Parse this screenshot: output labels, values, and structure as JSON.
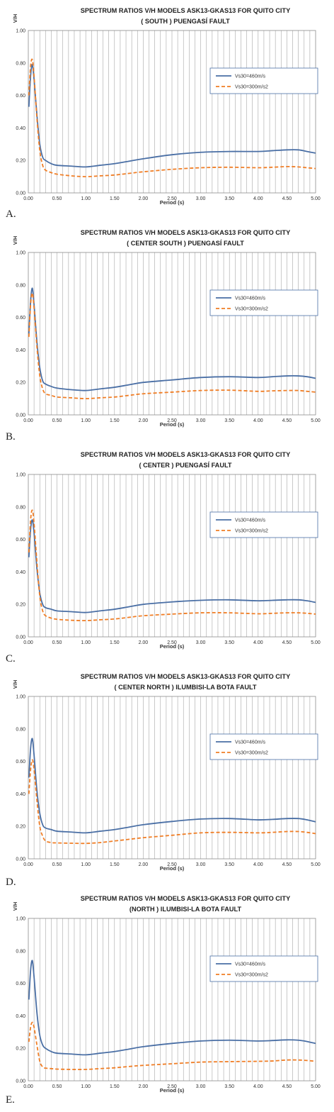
{
  "colors": {
    "series1": "#4A6FA5",
    "series2": "#F07E26",
    "grid": "#A6A6A6",
    "text": "#333333",
    "title": "#1F1F1F"
  },
  "chart_data": [
    {
      "type": "line",
      "panel_label": "A.",
      "title": "SPECTRUM  RATIOS V/H MODELS ASK13-GKAS13 FOR QUITO CITY",
      "subtitle": "( SOUTH ) PUENGASÍ FAULT",
      "xlabel": "Period (s)",
      "ylabel": "V/H",
      "xlim": [
        0,
        5
      ],
      "ylim": [
        0,
        1
      ],
      "x_ticks": [
        "0.00",
        "0.50",
        "1.00",
        "1.50",
        "2.00",
        "2.50",
        "3.00",
        "3.50",
        "4.00",
        "4.50",
        "5.00"
      ],
      "y_ticks": [
        "0.00",
        "0.20",
        "0.40",
        "0.60",
        "0.80",
        "1.00"
      ],
      "grid": "vertical",
      "legend": "right",
      "series": [
        {
          "name": "Vs30=460m/s",
          "style": "solid",
          "x": [
            0.01,
            0.04,
            0.07,
            0.1,
            0.15,
            0.2,
            0.25,
            0.3,
            0.4,
            0.5,
            0.75,
            1.0,
            1.25,
            1.5,
            1.75,
            2.0,
            2.5,
            3.0,
            3.5,
            4.0,
            4.25,
            4.5,
            4.7,
            4.85,
            5.0
          ],
          "y": [
            0.53,
            0.72,
            0.79,
            0.7,
            0.48,
            0.3,
            0.22,
            0.2,
            0.18,
            0.17,
            0.165,
            0.16,
            0.17,
            0.18,
            0.195,
            0.21,
            0.235,
            0.25,
            0.255,
            0.255,
            0.26,
            0.265,
            0.265,
            0.255,
            0.245
          ]
        },
        {
          "name": "Vs30=300m/s2",
          "style": "dashed",
          "x": [
            0.01,
            0.04,
            0.07,
            0.1,
            0.15,
            0.2,
            0.25,
            0.3,
            0.4,
            0.5,
            0.75,
            1.0,
            1.25,
            1.5,
            1.75,
            2.0,
            2.5,
            3.0,
            3.5,
            4.0,
            4.25,
            4.5,
            4.7,
            4.85,
            5.0
          ],
          "y": [
            0.6,
            0.78,
            0.82,
            0.72,
            0.46,
            0.26,
            0.17,
            0.14,
            0.125,
            0.115,
            0.105,
            0.1,
            0.105,
            0.11,
            0.12,
            0.13,
            0.145,
            0.155,
            0.158,
            0.155,
            0.158,
            0.162,
            0.16,
            0.155,
            0.15
          ]
        }
      ]
    },
    {
      "type": "line",
      "panel_label": "B.",
      "title": "SPECTRUM  RATIOS V/H MODELS ASK13-GKAS13 FOR QUITO CITY",
      "subtitle": "( CENTER SOUTH  ) PUENGASÍ FAULT",
      "xlabel": "Period (s)",
      "ylabel": "V/H",
      "xlim": [
        0,
        5
      ],
      "ylim": [
        0,
        1
      ],
      "x_ticks": [
        "0.00",
        "0.50",
        "1.00",
        "1.50",
        "2.00",
        "2.50",
        "3.00",
        "3.50",
        "4.00",
        "4.50",
        "5.00"
      ],
      "y_ticks": [
        "0.00",
        "0.20",
        "0.40",
        "0.60",
        "0.80",
        "1.00"
      ],
      "grid": "vertical",
      "legend": "right",
      "series": [
        {
          "name": "Vs30=460m/s",
          "style": "solid",
          "x": [
            0.01,
            0.04,
            0.07,
            0.1,
            0.15,
            0.2,
            0.25,
            0.3,
            0.4,
            0.5,
            0.75,
            1.0,
            1.25,
            1.5,
            1.75,
            2.0,
            2.5,
            3.0,
            3.5,
            4.0,
            4.25,
            4.5,
            4.7,
            4.85,
            5.0
          ],
          "y": [
            0.5,
            0.7,
            0.78,
            0.68,
            0.45,
            0.29,
            0.21,
            0.19,
            0.175,
            0.165,
            0.155,
            0.15,
            0.16,
            0.17,
            0.185,
            0.2,
            0.215,
            0.23,
            0.235,
            0.23,
            0.235,
            0.24,
            0.24,
            0.235,
            0.225
          ]
        },
        {
          "name": "Vs30=300m/s2",
          "style": "dashed",
          "x": [
            0.01,
            0.04,
            0.07,
            0.1,
            0.15,
            0.2,
            0.25,
            0.3,
            0.4,
            0.5,
            0.75,
            1.0,
            1.25,
            1.5,
            1.75,
            2.0,
            2.5,
            3.0,
            3.5,
            4.0,
            4.25,
            4.5,
            4.7,
            4.85,
            5.0
          ],
          "y": [
            0.48,
            0.68,
            0.75,
            0.66,
            0.42,
            0.24,
            0.16,
            0.13,
            0.12,
            0.11,
            0.105,
            0.1,
            0.105,
            0.11,
            0.12,
            0.13,
            0.14,
            0.15,
            0.152,
            0.145,
            0.148,
            0.15,
            0.15,
            0.145,
            0.14
          ]
        }
      ]
    },
    {
      "type": "line",
      "panel_label": "C.",
      "title": "SPECTRUM  RATIOS V/H MODELS ASK13-GKAS13 FOR QUITO CITY",
      "subtitle": "( CENTER ) PUENGASÍ FAULT",
      "xlabel": "Period (s)",
      "ylabel": "",
      "xlim": [
        0,
        5
      ],
      "ylim": [
        0,
        1
      ],
      "x_ticks": [
        "0.00",
        "0.50",
        "1.00",
        "1.50",
        "2.00",
        "2.50",
        "3.00",
        "3.50",
        "4.00",
        "4.50",
        "5.00"
      ],
      "y_ticks": [
        "0.00",
        "0.20",
        "0.40",
        "0.60",
        "0.80",
        "1.00"
      ],
      "grid": "vertical",
      "legend": "right",
      "series": [
        {
          "name": "Vs30=460m/s",
          "style": "solid",
          "x": [
            0.01,
            0.04,
            0.07,
            0.1,
            0.15,
            0.2,
            0.25,
            0.3,
            0.4,
            0.5,
            0.75,
            1.0,
            1.25,
            1.5,
            1.75,
            2.0,
            2.5,
            3.0,
            3.5,
            4.0,
            4.25,
            4.5,
            4.7,
            4.85,
            5.0
          ],
          "y": [
            0.49,
            0.66,
            0.72,
            0.64,
            0.42,
            0.27,
            0.2,
            0.18,
            0.17,
            0.16,
            0.155,
            0.15,
            0.16,
            0.17,
            0.185,
            0.2,
            0.215,
            0.225,
            0.228,
            0.222,
            0.225,
            0.228,
            0.228,
            0.222,
            0.212
          ]
        },
        {
          "name": "Vs30=300m/s2",
          "style": "dashed",
          "x": [
            0.01,
            0.04,
            0.07,
            0.1,
            0.15,
            0.2,
            0.25,
            0.3,
            0.4,
            0.5,
            0.75,
            1.0,
            1.25,
            1.5,
            1.75,
            2.0,
            2.5,
            3.0,
            3.5,
            4.0,
            4.25,
            4.5,
            4.7,
            4.85,
            5.0
          ],
          "y": [
            0.52,
            0.72,
            0.78,
            0.7,
            0.46,
            0.25,
            0.16,
            0.13,
            0.115,
            0.108,
            0.102,
            0.1,
            0.105,
            0.11,
            0.12,
            0.13,
            0.14,
            0.148,
            0.148,
            0.142,
            0.145,
            0.148,
            0.148,
            0.145,
            0.14
          ]
        }
      ]
    },
    {
      "type": "line",
      "panel_label": "D.",
      "title": "SPECTRUM  RATIOS V/H MODELS ASK13-GKAS13 FOR QUITO CITY",
      "subtitle": "( CENTER NORTH ) ILUMBISI-LA BOTA FAULT",
      "xlabel": "Period (s)",
      "ylabel": "V/H",
      "xlim": [
        0,
        5
      ],
      "ylim": [
        0,
        1
      ],
      "x_ticks": [
        "0.00",
        "0.50",
        "1.00",
        "1.50",
        "2.00",
        "2.50",
        "3.00",
        "3.50",
        "4.00",
        "4.50",
        "5.00"
      ],
      "y_ticks": [
        "0.00",
        "0.20",
        "0.40",
        "0.60",
        "0.80",
        "1.00"
      ],
      "grid": "vertical",
      "legend": "right",
      "series": [
        {
          "name": "Vs30=460m/s",
          "style": "solid",
          "x": [
            0.01,
            0.04,
            0.07,
            0.1,
            0.15,
            0.2,
            0.25,
            0.3,
            0.4,
            0.5,
            0.75,
            1.0,
            1.25,
            1.5,
            1.75,
            2.0,
            2.5,
            3.0,
            3.5,
            4.0,
            4.25,
            4.5,
            4.7,
            4.85,
            5.0
          ],
          "y": [
            0.5,
            0.68,
            0.74,
            0.64,
            0.42,
            0.28,
            0.21,
            0.19,
            0.18,
            0.17,
            0.165,
            0.16,
            0.17,
            0.18,
            0.195,
            0.21,
            0.23,
            0.245,
            0.248,
            0.24,
            0.243,
            0.248,
            0.248,
            0.24,
            0.228
          ]
        },
        {
          "name": "Vs30=300m/s2",
          "style": "dashed",
          "x": [
            0.01,
            0.04,
            0.07,
            0.1,
            0.15,
            0.2,
            0.25,
            0.3,
            0.4,
            0.5,
            0.75,
            1.0,
            1.25,
            1.5,
            1.75,
            2.0,
            2.5,
            3.0,
            3.5,
            4.0,
            4.25,
            4.5,
            4.7,
            4.85,
            5.0
          ],
          "y": [
            0.4,
            0.55,
            0.61,
            0.55,
            0.36,
            0.2,
            0.14,
            0.11,
            0.1,
            0.098,
            0.096,
            0.095,
            0.1,
            0.11,
            0.12,
            0.13,
            0.145,
            0.16,
            0.163,
            0.16,
            0.163,
            0.168,
            0.168,
            0.163,
            0.155
          ]
        }
      ]
    },
    {
      "type": "line",
      "panel_label": "E.",
      "title": "SPECTRUM  RATIOS V/H MODELS ASK13-GKAS13 FOR QUITO CITY",
      "subtitle": "(NORTH ) ILUMBISI-LA  BOTA FAULT",
      "xlabel": "Period (s)",
      "ylabel": "V/H",
      "xlim": [
        0,
        5
      ],
      "ylim": [
        0,
        1
      ],
      "x_ticks": [
        "0.00",
        "0.50",
        "1.00",
        "1.50",
        "2.00",
        "2.50",
        "3.00",
        "3.50",
        "4.00",
        "4.50",
        "5.00"
      ],
      "y_ticks": [
        "0.00",
        "0.20",
        "0.40",
        "0.60",
        "0.80",
        "1.00"
      ],
      "grid": "vertical",
      "legend": "right",
      "series": [
        {
          "name": "Vs30=460m/s",
          "style": "solid",
          "x": [
            0.01,
            0.04,
            0.07,
            0.1,
            0.15,
            0.2,
            0.25,
            0.3,
            0.4,
            0.5,
            0.75,
            1.0,
            1.25,
            1.5,
            1.75,
            2.0,
            2.5,
            3.0,
            3.5,
            4.0,
            4.25,
            4.5,
            4.7,
            4.85,
            5.0
          ],
          "y": [
            0.5,
            0.68,
            0.74,
            0.64,
            0.42,
            0.28,
            0.22,
            0.2,
            0.18,
            0.17,
            0.165,
            0.16,
            0.17,
            0.18,
            0.195,
            0.21,
            0.23,
            0.245,
            0.25,
            0.245,
            0.248,
            0.252,
            0.25,
            0.242,
            0.23
          ]
        },
        {
          "name": "Vs30=300m/s2",
          "style": "dashed",
          "x": [
            0.01,
            0.04,
            0.07,
            0.1,
            0.15,
            0.2,
            0.25,
            0.3,
            0.4,
            0.5,
            0.75,
            1.0,
            1.25,
            1.5,
            1.75,
            2.0,
            2.5,
            3.0,
            3.5,
            4.0,
            4.25,
            4.5,
            4.7,
            4.85,
            5.0
          ],
          "y": [
            0.24,
            0.33,
            0.36,
            0.33,
            0.22,
            0.12,
            0.085,
            0.078,
            0.075,
            0.072,
            0.07,
            0.07,
            0.075,
            0.08,
            0.088,
            0.095,
            0.105,
            0.115,
            0.118,
            0.12,
            0.122,
            0.128,
            0.128,
            0.125,
            0.12
          ]
        }
      ]
    }
  ]
}
